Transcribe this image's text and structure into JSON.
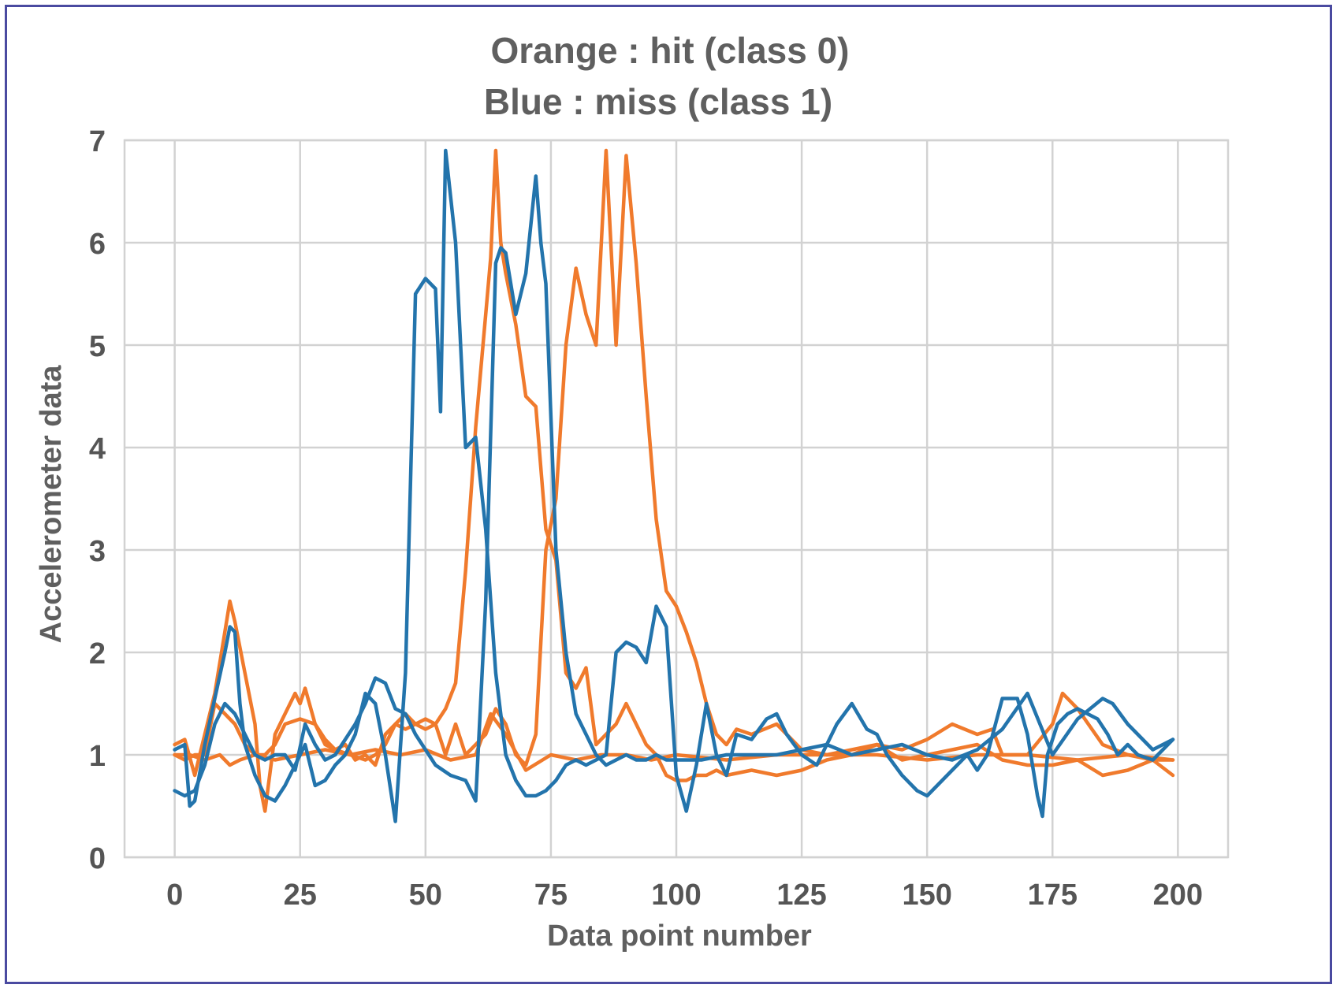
{
  "chart_data": {
    "type": "line",
    "title_lines": [
      "Orange : hit (class 0)",
      "Blue : miss (class 1)"
    ],
    "xlabel": "Data point number",
    "ylabel": "Accelerometer data",
    "xlim": [
      -10,
      210
    ],
    "ylim": [
      0,
      7
    ],
    "xticks": [
      0,
      25,
      50,
      75,
      100,
      125,
      150,
      175,
      200
    ],
    "yticks": [
      0,
      1,
      2,
      3,
      4,
      5,
      6,
      7
    ],
    "grid": true,
    "colors": {
      "orange": "#f07a2c",
      "blue": "#2374ac",
      "grid": "#d2d2d2",
      "text": "#5f5f5f",
      "frame": "#4a4aa0"
    },
    "series": [
      {
        "class": "hit (class 0)",
        "color": "#f07a2c",
        "x": [
          0,
          2,
          4,
          6,
          8,
          10,
          11,
          12,
          14,
          16,
          17,
          18,
          20,
          22,
          24,
          25,
          26,
          28,
          30,
          32,
          34,
          36,
          38,
          40,
          42,
          44,
          46,
          48,
          50,
          52,
          54,
          56,
          58,
          60,
          62,
          63,
          64,
          65,
          66,
          68,
          70,
          72,
          74,
          76,
          78,
          80,
          82,
          84,
          86,
          88,
          90,
          92,
          94,
          96,
          98,
          100,
          102,
          104,
          106,
          108,
          110,
          115,
          120,
          125,
          130,
          135,
          140,
          145,
          150,
          155,
          160,
          165,
          170,
          175,
          180,
          185,
          190,
          195,
          199
        ],
        "y": [
          1.1,
          1.15,
          0.8,
          1.2,
          1.6,
          2.2,
          2.5,
          2.3,
          1.8,
          1.3,
          0.7,
          0.45,
          1.2,
          1.4,
          1.6,
          1.5,
          1.65,
          1.3,
          1.1,
          1.05,
          1.1,
          0.95,
          1.0,
          0.9,
          1.2,
          1.3,
          1.25,
          1.3,
          1.25,
          1.3,
          1.45,
          1.7,
          2.8,
          4.2,
          5.3,
          5.85,
          6.9,
          6.0,
          5.7,
          5.2,
          4.5,
          4.4,
          3.2,
          2.9,
          1.8,
          1.65,
          1.85,
          1.1,
          1.2,
          1.3,
          1.5,
          1.3,
          1.1,
          1.0,
          0.8,
          0.75,
          0.75,
          0.8,
          0.8,
          0.85,
          0.8,
          0.85,
          0.8,
          0.85,
          0.95,
          1.0,
          1.1,
          0.95,
          1.0,
          1.05,
          1.1,
          0.95,
          0.9,
          0.9,
          0.95,
          0.8,
          0.85,
          0.95,
          0.8
        ]
      },
      {
        "class": "hit (class 0)",
        "color": "#f07a2c",
        "x": [
          0,
          2,
          4,
          6,
          8,
          10,
          12,
          14,
          16,
          18,
          20,
          22,
          25,
          28,
          30,
          32,
          35,
          38,
          40,
          42,
          44,
          46,
          48,
          50,
          52,
          54,
          56,
          58,
          60,
          62,
          64,
          66,
          68,
          70,
          72,
          74,
          76,
          78,
          80,
          82,
          84,
          86,
          88,
          90,
          92,
          94,
          96,
          98,
          100,
          102,
          104,
          106,
          108,
          110,
          112,
          115,
          120,
          125,
          130,
          135,
          140,
          145,
          150,
          155,
          160,
          163,
          165,
          170,
          175,
          177,
          180,
          185,
          190,
          195,
          199
        ],
        "y": [
          1.0,
          0.95,
          1.0,
          1.0,
          1.5,
          1.4,
          1.3,
          1.1,
          1.0,
          1.0,
          1.1,
          1.3,
          1.35,
          1.3,
          1.15,
          1.05,
          1.0,
          0.95,
          1.0,
          1.1,
          1.3,
          1.4,
          1.3,
          1.35,
          1.3,
          1.0,
          1.3,
          1.0,
          1.1,
          1.2,
          1.45,
          1.3,
          1.0,
          0.9,
          1.2,
          3.0,
          3.5,
          5.0,
          5.75,
          5.3,
          5.0,
          6.9,
          5.0,
          6.85,
          5.8,
          4.5,
          3.3,
          2.6,
          2.45,
          2.2,
          1.9,
          1.5,
          1.2,
          1.1,
          1.25,
          1.2,
          1.3,
          1.05,
          1.0,
          1.05,
          1.1,
          1.05,
          1.15,
          1.3,
          1.2,
          1.25,
          1.0,
          1.0,
          1.3,
          1.6,
          1.45,
          1.1,
          1.0,
          0.95,
          0.95
        ]
      },
      {
        "class": "hit (class 0)",
        "color": "#f07a2c",
        "x": [
          0,
          3,
          6,
          9,
          11,
          13,
          16,
          20,
          25,
          30,
          35,
          40,
          45,
          50,
          55,
          60,
          63,
          66,
          70,
          75,
          80,
          85,
          90,
          95,
          100,
          110,
          120,
          130,
          140,
          150,
          160,
          170,
          180,
          190,
          199
        ],
        "y": [
          1.0,
          1.0,
          0.95,
          1.0,
          0.9,
          0.95,
          1.0,
          0.95,
          1.0,
          1.05,
          1.0,
          1.05,
          1.0,
          1.05,
          0.95,
          1.0,
          1.4,
          1.2,
          0.85,
          1.0,
          0.95,
          1.0,
          1.0,
          0.95,
          1.0,
          0.95,
          1.0,
          1.0,
          1.0,
          0.95,
          1.0,
          1.0,
          0.95,
          1.0,
          0.95
        ]
      },
      {
        "class": "miss (class 1)",
        "color": "#2374ac",
        "x": [
          0,
          2,
          3,
          4,
          6,
          8,
          10,
          11,
          12,
          13,
          14,
          16,
          18,
          20,
          22,
          24,
          26,
          28,
          30,
          32,
          34,
          36,
          38,
          40,
          42,
          44,
          46,
          48,
          50,
          52,
          53,
          54,
          56,
          58,
          60,
          62,
          64,
          66,
          68,
          70,
          72,
          74,
          76,
          78,
          80,
          82,
          84,
          86,
          88,
          90,
          92,
          94,
          96,
          98,
          100,
          102,
          104,
          106,
          108,
          110,
          112,
          115,
          118,
          120,
          122,
          125,
          128,
          132,
          135,
          138,
          140,
          142,
          145,
          148,
          150,
          152,
          155,
          158,
          160,
          162,
          165,
          168,
          170,
          172,
          173,
          174,
          176,
          178,
          180,
          182,
          184,
          186,
          188,
          190,
          192,
          195,
          199
        ],
        "y": [
          1.05,
          1.1,
          0.5,
          0.55,
          1.1,
          1.55,
          2.0,
          2.25,
          2.2,
          1.5,
          1.1,
          0.8,
          0.6,
          0.55,
          0.7,
          0.9,
          1.1,
          0.7,
          0.75,
          0.9,
          1.0,
          1.2,
          1.6,
          1.5,
          1.0,
          0.35,
          1.8,
          5.5,
          5.65,
          5.55,
          4.35,
          6.9,
          6.0,
          4.0,
          4.1,
          3.2,
          1.8,
          1.0,
          0.75,
          0.6,
          0.6,
          0.65,
          0.75,
          0.9,
          0.95,
          0.9,
          0.95,
          1.0,
          2.0,
          2.1,
          2.05,
          1.9,
          2.45,
          2.25,
          0.8,
          0.45,
          0.9,
          1.5,
          1.0,
          0.8,
          1.2,
          1.15,
          1.35,
          1.4,
          1.2,
          1.0,
          0.9,
          1.3,
          1.5,
          1.25,
          1.2,
          1.0,
          0.8,
          0.65,
          0.6,
          0.7,
          0.85,
          1.0,
          0.85,
          1.0,
          1.55,
          1.55,
          1.2,
          0.6,
          0.4,
          1.0,
          1.3,
          1.4,
          1.45,
          1.4,
          1.35,
          1.2,
          1.0,
          1.1,
          1.0,
          0.95,
          1.15
        ]
      },
      {
        "class": "miss (class 1)",
        "color": "#2374ac",
        "x": [
          0,
          2,
          4,
          6,
          8,
          10,
          12,
          14,
          16,
          18,
          20,
          22,
          24,
          26,
          28,
          30,
          32,
          34,
          36,
          38,
          40,
          42,
          44,
          46,
          48,
          50,
          52,
          55,
          58,
          60,
          62,
          64,
          65,
          66,
          68,
          70,
          72,
          73,
          74,
          76,
          78,
          80,
          82,
          84,
          86,
          88,
          90,
          92,
          94,
          96,
          98,
          100,
          105,
          110,
          115,
          120,
          125,
          130,
          135,
          140,
          145,
          150,
          155,
          160,
          165,
          170,
          175,
          180,
          185,
          187,
          190,
          195,
          199
        ],
        "y": [
          0.65,
          0.6,
          0.65,
          0.9,
          1.3,
          1.5,
          1.4,
          1.2,
          1.0,
          0.95,
          1.0,
          1.0,
          0.85,
          1.3,
          1.1,
          0.95,
          1.0,
          1.15,
          1.3,
          1.5,
          1.75,
          1.7,
          1.45,
          1.4,
          1.2,
          1.05,
          0.9,
          0.8,
          0.75,
          0.55,
          2.5,
          5.8,
          5.95,
          5.9,
          5.3,
          5.7,
          6.65,
          6.0,
          5.6,
          3.0,
          2.0,
          1.4,
          1.2,
          1.0,
          0.9,
          0.95,
          1.0,
          0.95,
          0.95,
          1.0,
          0.95,
          0.95,
          0.95,
          1.0,
          1.0,
          1.0,
          1.05,
          1.1,
          1.0,
          1.05,
          1.1,
          1.0,
          0.95,
          1.05,
          1.25,
          1.6,
          1.0,
          1.35,
          1.55,
          1.5,
          1.3,
          1.05,
          1.15
        ]
      }
    ]
  }
}
